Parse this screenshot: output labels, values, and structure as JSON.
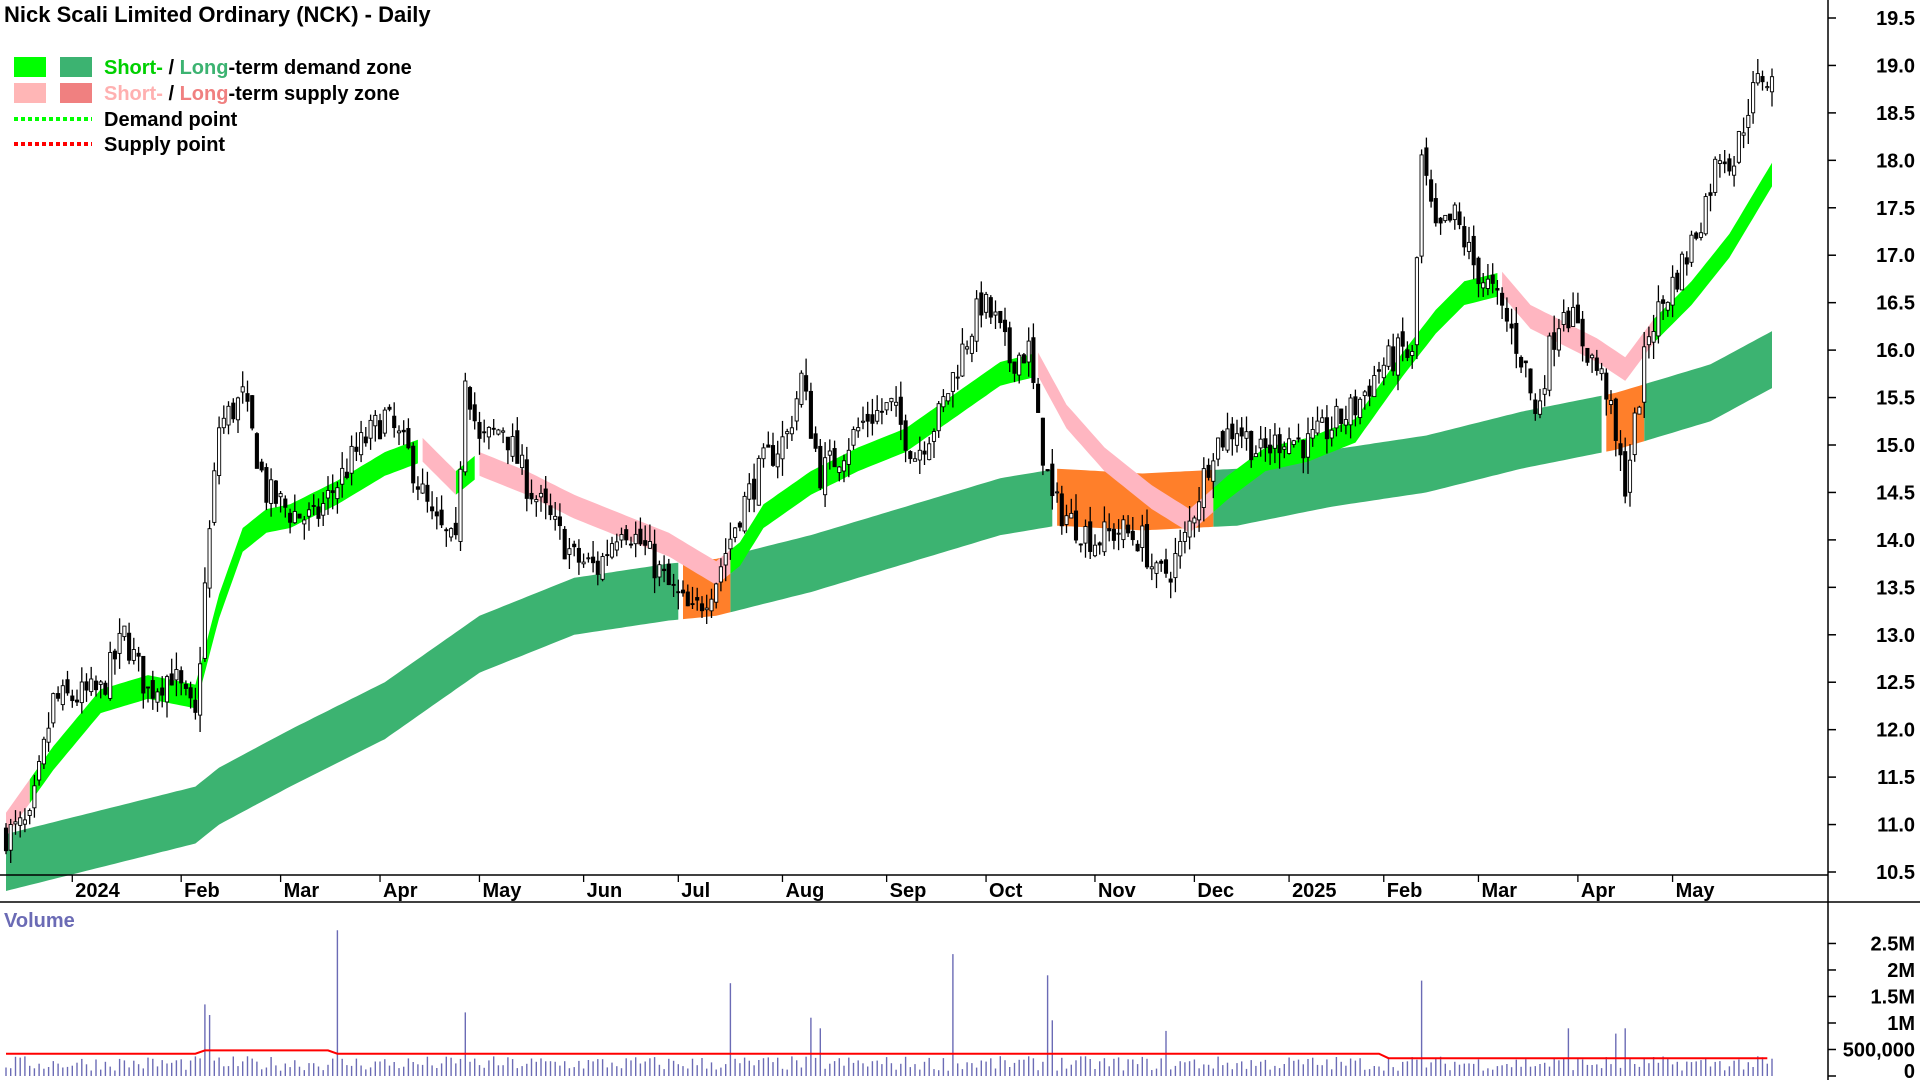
{
  "title": "Nick Scali Limited Ordinary (NCK) - Daily",
  "legend": {
    "demand_zone": {
      "short": "Short-",
      "sep": " / ",
      "long": "Long",
      "rest": "-term demand zone",
      "short_color": "#00ff00",
      "long_color": "#3cb371"
    },
    "supply_zone": {
      "short": "Short-",
      "sep": " / ",
      "long": "Long",
      "rest": "-term supply zone",
      "short_color": "#ffb6b6",
      "long_color": "#f08080"
    },
    "demand_point": {
      "label": "Demand point",
      "color": "#00ff00"
    },
    "supply_point": {
      "label": "Supply point",
      "color": "#ff0000"
    }
  },
  "colors": {
    "short_demand": "#00ff00",
    "long_demand": "#3cb371",
    "short_supply": "#ffb6c1",
    "long_supply": "#ff7f2a",
    "candle": "#000000",
    "volume_bar": "#6b6bb5",
    "volume_avg": "#ff0000"
  },
  "chart_data": [
    {
      "type": "line",
      "subtype": "candlestick-with-bands",
      "title": "Nick Scali Limited Ordinary (NCK) - Daily",
      "x_tick_labels": [
        "2024",
        "Feb",
        "Mar",
        "Apr",
        "May",
        "Jun",
        "Jul",
        "Aug",
        "Sep",
        "Oct",
        "Nov",
        "Dec",
        "2025",
        "Feb",
        "Mar",
        "Apr",
        "May"
      ],
      "y_tick_labels": [
        "10.5",
        "11.0",
        "11.5",
        "12.0",
        "12.5",
        "13.0",
        "13.5",
        "14.0",
        "14.5",
        "15.0",
        "15.5",
        "16.0",
        "16.5",
        "17.0",
        "17.5",
        "18.0",
        "18.5",
        "19.0",
        "19.5"
      ],
      "ylim": [
        10.5,
        19.5
      ],
      "axis_side": "right",
      "close_keypoints": [
        {
          "x": 0,
          "y": 10.9
        },
        {
          "x": 5,
          "y": 11.0
        },
        {
          "x": 10,
          "y": 12.3
        },
        {
          "x": 20,
          "y": 12.4
        },
        {
          "x": 25,
          "y": 13.0
        },
        {
          "x": 30,
          "y": 12.4
        },
        {
          "x": 35,
          "y": 12.6
        },
        {
          "x": 40,
          "y": 12.1
        },
        {
          "x": 42,
          "y": 13.5
        },
        {
          "x": 45,
          "y": 15.2
        },
        {
          "x": 50,
          "y": 15.5
        },
        {
          "x": 55,
          "y": 14.5
        },
        {
          "x": 60,
          "y": 14.3
        },
        {
          "x": 65,
          "y": 14.2
        },
        {
          "x": 70,
          "y": 14.6
        },
        {
          "x": 75,
          "y": 15.0
        },
        {
          "x": 80,
          "y": 15.3
        },
        {
          "x": 85,
          "y": 14.9
        },
        {
          "x": 90,
          "y": 14.2
        },
        {
          "x": 95,
          "y": 13.9
        },
        {
          "x": 97,
          "y": 15.8
        },
        {
          "x": 100,
          "y": 15.0
        },
        {
          "x": 105,
          "y": 15.2
        },
        {
          "x": 110,
          "y": 14.6
        },
        {
          "x": 115,
          "y": 14.2
        },
        {
          "x": 120,
          "y": 13.8
        },
        {
          "x": 125,
          "y": 13.7
        },
        {
          "x": 130,
          "y": 14.2
        },
        {
          "x": 135,
          "y": 13.9
        },
        {
          "x": 140,
          "y": 13.5
        },
        {
          "x": 145,
          "y": 13.2
        },
        {
          "x": 150,
          "y": 13.6
        },
        {
          "x": 155,
          "y": 14.3
        },
        {
          "x": 160,
          "y": 14.8
        },
        {
          "x": 165,
          "y": 15.1
        },
        {
          "x": 168,
          "y": 15.7
        },
        {
          "x": 172,
          "y": 14.7
        },
        {
          "x": 176,
          "y": 14.9
        },
        {
          "x": 182,
          "y": 15.3
        },
        {
          "x": 187,
          "y": 15.4
        },
        {
          "x": 192,
          "y": 14.9
        },
        {
          "x": 197,
          "y": 15.3
        },
        {
          "x": 202,
          "y": 16.0
        },
        {
          "x": 206,
          "y": 16.5
        },
        {
          "x": 209,
          "y": 16.3
        },
        {
          "x": 212,
          "y": 15.9
        },
        {
          "x": 216,
          "y": 16.0
        },
        {
          "x": 218,
          "y": 15.2
        },
        {
          "x": 221,
          "y": 14.4
        },
        {
          "x": 225,
          "y": 14.2
        },
        {
          "x": 230,
          "y": 14.0
        },
        {
          "x": 235,
          "y": 14.1
        },
        {
          "x": 240,
          "y": 14.0
        },
        {
          "x": 243,
          "y": 13.6
        },
        {
          "x": 246,
          "y": 13.7
        },
        {
          "x": 249,
          "y": 14.0
        },
        {
          "x": 252,
          "y": 14.5
        },
        {
          "x": 255,
          "y": 15.0
        },
        {
          "x": 260,
          "y": 15.2
        },
        {
          "x": 265,
          "y": 14.9
        },
        {
          "x": 270,
          "y": 15.1
        },
        {
          "x": 275,
          "y": 15.0
        },
        {
          "x": 280,
          "y": 15.2
        },
        {
          "x": 285,
          "y": 15.4
        },
        {
          "x": 290,
          "y": 15.8
        },
        {
          "x": 295,
          "y": 16.0
        },
        {
          "x": 297,
          "y": 15.9
        },
        {
          "x": 299,
          "y": 18.0
        },
        {
          "x": 302,
          "y": 17.2
        },
        {
          "x": 306,
          "y": 17.4
        },
        {
          "x": 310,
          "y": 16.9
        },
        {
          "x": 314,
          "y": 16.6
        },
        {
          "x": 318,
          "y": 16.2
        },
        {
          "x": 321,
          "y": 15.8
        },
        {
          "x": 323,
          "y": 15.3
        },
        {
          "x": 326,
          "y": 16.0
        },
        {
          "x": 329,
          "y": 16.5
        },
        {
          "x": 332,
          "y": 16.2
        },
        {
          "x": 335,
          "y": 15.9
        },
        {
          "x": 338,
          "y": 15.6
        },
        {
          "x": 340,
          "y": 15.0
        },
        {
          "x": 342,
          "y": 14.6
        },
        {
          "x": 344,
          "y": 15.2
        },
        {
          "x": 347,
          "y": 16.2
        },
        {
          "x": 351,
          "y": 16.6
        },
        {
          "x": 355,
          "y": 17.0
        },
        {
          "x": 358,
          "y": 17.4
        },
        {
          "x": 362,
          "y": 18.1
        },
        {
          "x": 365,
          "y": 18.0
        },
        {
          "x": 368,
          "y": 18.6
        },
        {
          "x": 371,
          "y": 18.9
        },
        {
          "x": 373,
          "y": 18.8
        }
      ],
      "short_band_keypoints": [
        {
          "x": 0,
          "y": 11.0
        },
        {
          "x": 10,
          "y": 11.7
        },
        {
          "x": 20,
          "y": 12.3
        },
        {
          "x": 30,
          "y": 12.45
        },
        {
          "x": 40,
          "y": 12.35
        },
        {
          "x": 45,
          "y": 13.3
        },
        {
          "x": 50,
          "y": 14.0
        },
        {
          "x": 55,
          "y": 14.2
        },
        {
          "x": 60,
          "y": 14.25
        },
        {
          "x": 70,
          "y": 14.5
        },
        {
          "x": 80,
          "y": 14.8
        },
        {
          "x": 88,
          "y": 14.95
        },
        {
          "x": 95,
          "y": 14.6
        },
        {
          "x": 100,
          "y": 14.8
        },
        {
          "x": 110,
          "y": 14.6
        },
        {
          "x": 120,
          "y": 14.35
        },
        {
          "x": 130,
          "y": 14.15
        },
        {
          "x": 140,
          "y": 13.95
        },
        {
          "x": 150,
          "y": 13.65
        },
        {
          "x": 155,
          "y": 13.85
        },
        {
          "x": 160,
          "y": 14.25
        },
        {
          "x": 170,
          "y": 14.6
        },
        {
          "x": 180,
          "y": 14.85
        },
        {
          "x": 190,
          "y": 15.05
        },
        {
          "x": 200,
          "y": 15.4
        },
        {
          "x": 210,
          "y": 15.75
        },
        {
          "x": 218,
          "y": 15.85
        },
        {
          "x": 224,
          "y": 15.3
        },
        {
          "x": 232,
          "y": 14.85
        },
        {
          "x": 242,
          "y": 14.45
        },
        {
          "x": 250,
          "y": 14.2
        },
        {
          "x": 258,
          "y": 14.55
        },
        {
          "x": 266,
          "y": 14.85
        },
        {
          "x": 275,
          "y": 14.95
        },
        {
          "x": 285,
          "y": 15.15
        },
        {
          "x": 295,
          "y": 15.85
        },
        {
          "x": 302,
          "y": 16.3
        },
        {
          "x": 308,
          "y": 16.6
        },
        {
          "x": 316,
          "y": 16.7
        },
        {
          "x": 322,
          "y": 16.35
        },
        {
          "x": 330,
          "y": 16.15
        },
        {
          "x": 336,
          "y": 16.0
        },
        {
          "x": 342,
          "y": 15.8
        },
        {
          "x": 348,
          "y": 16.2
        },
        {
          "x": 356,
          "y": 16.6
        },
        {
          "x": 364,
          "y": 17.1
        },
        {
          "x": 373,
          "y": 17.85
        }
      ],
      "short_band_width": 0.25,
      "long_band_keypoints": [
        {
          "x": 0,
          "y": 10.6
        },
        {
          "x": 20,
          "y": 10.85
        },
        {
          "x": 40,
          "y": 11.1
        },
        {
          "x": 45,
          "y": 11.3
        },
        {
          "x": 60,
          "y": 11.7
        },
        {
          "x": 80,
          "y": 12.2
        },
        {
          "x": 100,
          "y": 12.9
        },
        {
          "x": 120,
          "y": 13.3
        },
        {
          "x": 140,
          "y": 13.45
        },
        {
          "x": 150,
          "y": 13.5
        },
        {
          "x": 170,
          "y": 13.75
        },
        {
          "x": 190,
          "y": 14.05
        },
        {
          "x": 210,
          "y": 14.35
        },
        {
          "x": 222,
          "y": 14.45
        },
        {
          "x": 240,
          "y": 14.4
        },
        {
          "x": 260,
          "y": 14.45
        },
        {
          "x": 280,
          "y": 14.65
        },
        {
          "x": 300,
          "y": 14.8
        },
        {
          "x": 320,
          "y": 15.05
        },
        {
          "x": 340,
          "y": 15.25
        },
        {
          "x": 360,
          "y": 15.55
        },
        {
          "x": 373,
          "y": 15.9
        }
      ],
      "long_band_width": 0.6,
      "short_supply_ranges": [
        [
          0,
          5
        ],
        [
          88,
          95
        ],
        [
          100,
          153
        ],
        [
          218,
          255
        ],
        [
          316,
          348
        ]
      ],
      "long_supply_ranges": [
        [
          143,
          153
        ],
        [
          222,
          255
        ],
        [
          338,
          346
        ]
      ],
      "total_bars": 374
    },
    {
      "type": "bar",
      "title": "Volume",
      "y_tick_labels": [
        "0",
        "500,000",
        "1M",
        "1.5M",
        "2M",
        "2.5M"
      ],
      "ylim": [
        0,
        3000000
      ],
      "base_level": 250000,
      "average_level": 420000,
      "spikes": [
        {
          "x": 42,
          "y": 1350000
        },
        {
          "x": 43,
          "y": 1150000
        },
        {
          "x": 70,
          "y": 2750000
        },
        {
          "x": 97,
          "y": 1200000
        },
        {
          "x": 153,
          "y": 1750000
        },
        {
          "x": 170,
          "y": 1100000
        },
        {
          "x": 172,
          "y": 900000
        },
        {
          "x": 200,
          "y": 2300000
        },
        {
          "x": 220,
          "y": 1900000
        },
        {
          "x": 221,
          "y": 1050000
        },
        {
          "x": 245,
          "y": 850000
        },
        {
          "x": 299,
          "y": 1800000
        },
        {
          "x": 330,
          "y": 900000
        },
        {
          "x": 340,
          "y": 800000
        },
        {
          "x": 342,
          "y": 900000
        }
      ]
    }
  ]
}
